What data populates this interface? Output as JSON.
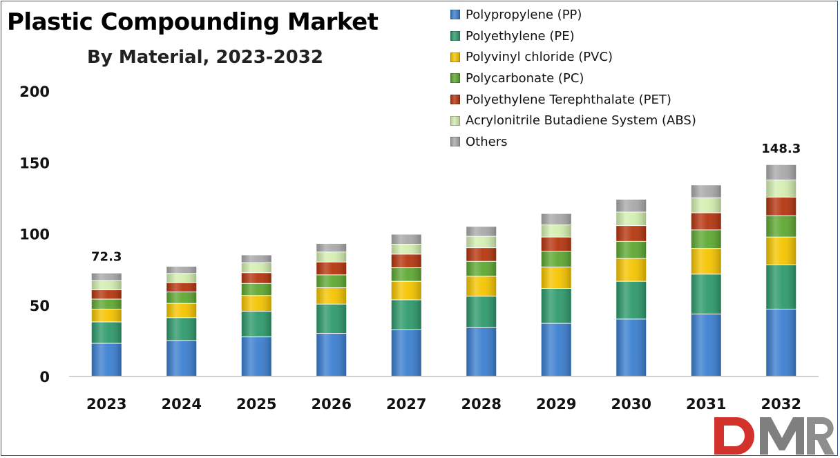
{
  "header": {
    "title": "Plastic Compounding Market",
    "subtitle": "By Material, 2023-2032"
  },
  "logo": {
    "text": "DMR",
    "colors": [
      "#d2312c",
      "#7f7f7f",
      "#8e8e8e"
    ]
  },
  "chart_data": {
    "type": "bar",
    "stacked": true,
    "title": "Plastic Compounding Market",
    "subtitle": "By Material, 2023-2032",
    "xlabel": "",
    "ylabel": "",
    "ylim": [
      0,
      200
    ],
    "yticks": [
      0,
      50,
      100,
      150,
      200
    ],
    "grid": false,
    "legend_position": "top-right",
    "categories": [
      "2023",
      "2024",
      "2025",
      "2026",
      "2027",
      "2028",
      "2029",
      "2030",
      "2031",
      "2032"
    ],
    "series": [
      {
        "name": "Polypropylene (PP)",
        "color": "#3b7fd0",
        "values": [
          23,
          25,
          27.5,
          30,
          32.5,
          34,
          37,
          40,
          43.5,
          47
        ]
      },
      {
        "name": "Polyethylene (PE)",
        "color": "#2e9a6c",
        "values": [
          15,
          16,
          18,
          20.5,
          21,
          22,
          24.5,
          26.5,
          28,
          31
        ]
      },
      {
        "name": "Polyvinyl chloride (PVC)",
        "color": "#f5c400",
        "values": [
          9,
          10,
          11,
          11.5,
          13,
          14,
          15,
          16,
          18,
          19.5
        ]
      },
      {
        "name": "Polycarbonate (PC)",
        "color": "#5ea832",
        "values": [
          7,
          8,
          8.5,
          9,
          9.5,
          10.5,
          11,
          12,
          13,
          15
        ]
      },
      {
        "name": "Polyethylene Terephthalate (PET)",
        "color": "#b5360f",
        "values": [
          6.5,
          6.5,
          7.5,
          9,
          9.5,
          9.5,
          10,
          11,
          12,
          13
        ]
      },
      {
        "name": "Acrylonitrile Butadiene System (ABS)",
        "color": "#d3eeb0",
        "values": [
          6.5,
          6.5,
          7,
          7,
          7,
          8,
          8.5,
          9.5,
          10.5,
          12
        ]
      },
      {
        "name": "Others",
        "color": "#a9a9a9",
        "values": [
          5.3,
          5,
          5.5,
          6,
          7,
          7,
          8,
          9,
          9,
          10.8
        ]
      }
    ],
    "data_labels": [
      {
        "category": "2023",
        "text": "72.3"
      },
      {
        "category": "2032",
        "text": "148.3"
      }
    ]
  }
}
